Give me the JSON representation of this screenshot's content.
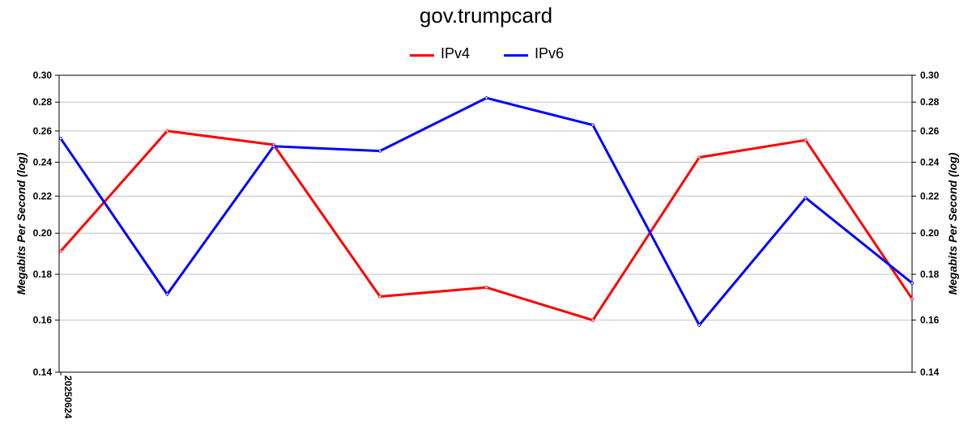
{
  "chart_data": {
    "type": "line",
    "title": "gov.trumpcard",
    "ylabel": "Megabits Per Second (log)",
    "yscale": "log",
    "ylim": [
      0.14,
      0.3
    ],
    "yticks": [
      "0.14",
      "0.16",
      "0.18",
      "0.20",
      "0.22",
      "0.24",
      "0.26",
      "0.28",
      "0.30"
    ],
    "x_tick_labels": [
      "20250624"
    ],
    "grid": "horizontal",
    "legend_position": "top-center",
    "series": [
      {
        "name": "IPv4",
        "color": "#ff0000",
        "values": [
          0.191,
          0.26,
          0.251,
          0.17,
          0.174,
          0.16,
          0.243,
          0.254,
          0.169
        ]
      },
      {
        "name": "IPv6",
        "color": "#0000ff",
        "values": [
          0.255,
          0.171,
          0.25,
          0.247,
          0.283,
          0.264,
          0.158,
          0.219,
          0.176
        ]
      }
    ]
  }
}
